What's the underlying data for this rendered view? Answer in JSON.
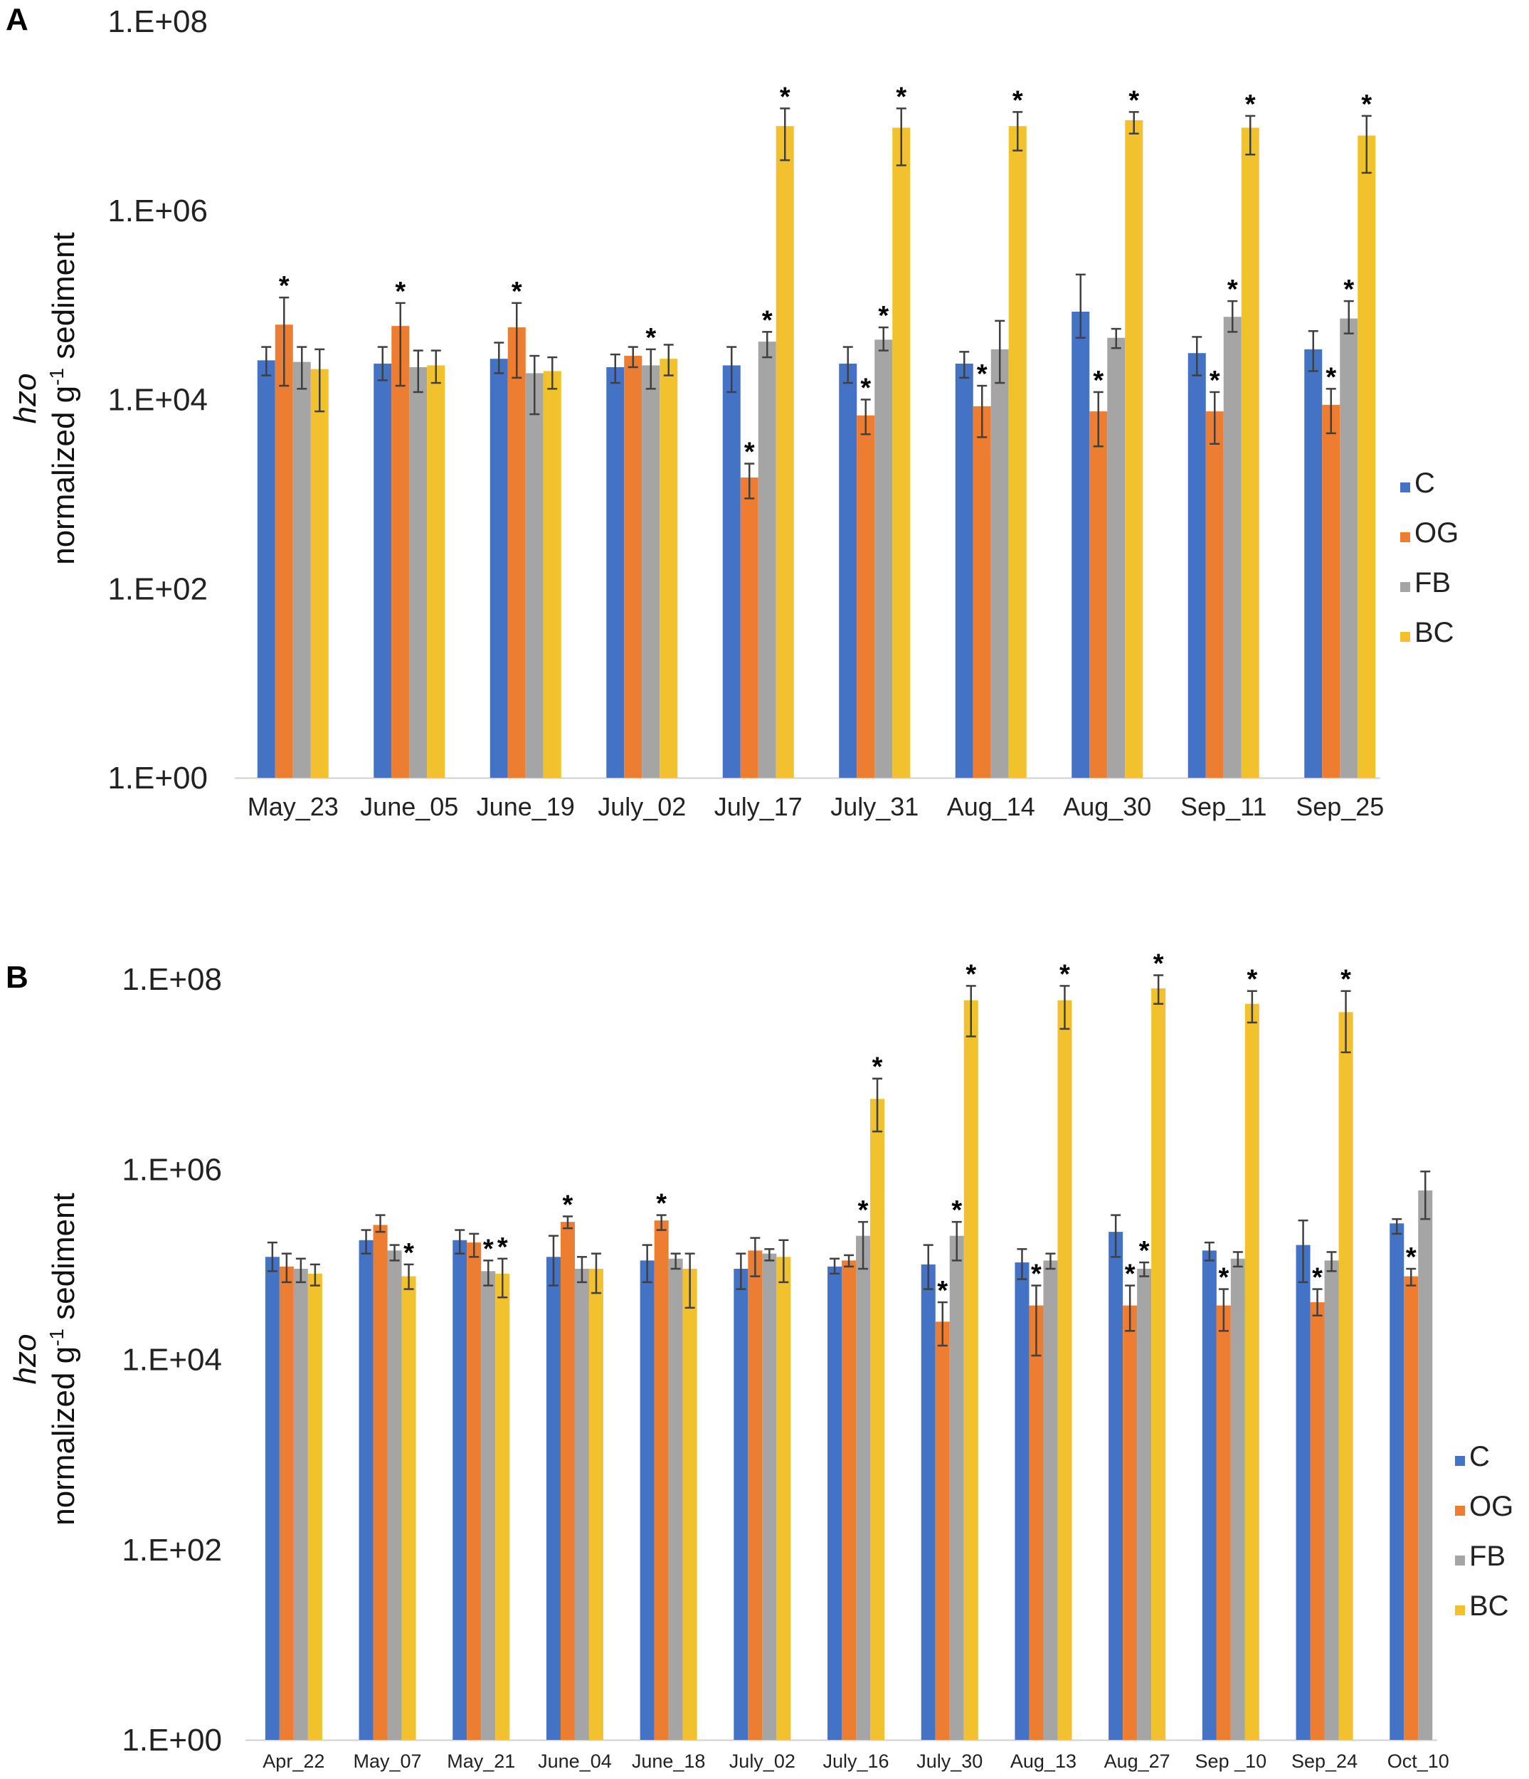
{
  "chart_data": [
    {
      "panel": "A",
      "type": "bar",
      "scale": "log",
      "ylim": [
        1,
        100000000
      ],
      "y_ticks": [
        "1.E+00",
        "1.E+02",
        "1.E+04",
        "1.E+06",
        "1.E+08"
      ],
      "ylabel_italic": "hzo",
      "ylabel": "normalized g",
      "ylabel_sup": "-1",
      "ylabel_suffix": " sediment",
      "categories": [
        "May_23",
        "June_05",
        "June_19",
        "July_02",
        "July_17",
        "July_31",
        "Aug_14",
        "Aug_30",
        "Sep_11",
        "Sep_25"
      ],
      "series": [
        {
          "name": "C",
          "color": "#4472C4",
          "values": [
            26000,
            24000,
            27000,
            22000,
            23000,
            24000,
            24000,
            85000,
            31000,
            34000
          ],
          "err_low": [
            18000,
            16000,
            19000,
            15000,
            12000,
            15000,
            17000,
            45000,
            18000,
            20000
          ],
          "err_high": [
            36000,
            36000,
            40000,
            30000,
            36000,
            36000,
            32000,
            210000,
            46000,
            53000
          ],
          "sig": [
            false,
            false,
            false,
            false,
            false,
            false,
            false,
            false,
            false,
            false
          ]
        },
        {
          "name": "OG",
          "color": "#ED7D31",
          "values": [
            62000,
            60000,
            58000,
            29000,
            1500,
            6800,
            8500,
            7500,
            7500,
            8800
          ],
          "err_low": [
            14000,
            14000,
            17000,
            22000,
            900,
            4300,
            4000,
            3200,
            3400,
            4400
          ],
          "err_high": [
            120000,
            105000,
            105000,
            36000,
            2100,
            10000,
            14000,
            12000,
            12000,
            13000
          ],
          "sig": [
            true,
            true,
            true,
            false,
            true,
            true,
            true,
            true,
            true,
            true
          ]
        },
        {
          "name": "FB",
          "color": "#A5A5A5",
          "values": [
            25000,
            22000,
            19000,
            23000,
            41000,
            43000,
            34000,
            45000,
            75000,
            72000
          ],
          "err_low": [
            13000,
            12000,
            7000,
            13000,
            28000,
            33000,
            15000,
            35000,
            52000,
            50000
          ],
          "err_high": [
            36000,
            33000,
            29000,
            34000,
            52000,
            58000,
            68000,
            56000,
            110000,
            110000
          ],
          "sig": [
            false,
            false,
            false,
            true,
            true,
            true,
            false,
            false,
            true,
            true
          ]
        },
        {
          "name": "BC",
          "color": "#F2C12E",
          "values": [
            21000,
            23000,
            20000,
            27000,
            7800000,
            7500000,
            7800000,
            9000000,
            7500000,
            6200000
          ],
          "err_low": [
            7500,
            15000,
            13000,
            18000,
            3400000,
            3000000,
            4300000,
            6500000,
            3900000,
            2500000
          ],
          "err_high": [
            34000,
            33000,
            28000,
            38000,
            12000000,
            12000000,
            11000000,
            11000000,
            10000000,
            10000000
          ],
          "sig": [
            false,
            false,
            false,
            false,
            true,
            true,
            true,
            true,
            true,
            true
          ]
        }
      ],
      "legend": [
        "C",
        "OG",
        "FB",
        "BC"
      ],
      "legend_position": "right"
    },
    {
      "panel": "B",
      "type": "bar",
      "scale": "log",
      "ylim": [
        1,
        100000000
      ],
      "y_ticks": [
        "1.E+00",
        "1.E+02",
        "1.E+04",
        "1.E+06",
        "1.E+08"
      ],
      "ylabel_italic": "hzo",
      "ylabel": "normalized g",
      "ylabel_sup": "-1",
      "ylabel_suffix": " sediment",
      "categories": [
        "Apr_22",
        "May_07",
        "May_21",
        "June_04",
        "June_18",
        "July_02",
        "July_16",
        "July_30",
        "Aug_13",
        "Aug_27",
        "Sep _10",
        "Sep_24",
        "Oct_10"
      ],
      "series": [
        {
          "name": "C",
          "color": "#4472C4",
          "values": [
            120000,
            180000,
            180000,
            120000,
            110000,
            90000,
            95000,
            100000,
            105000,
            220000,
            140000,
            160000,
            270000
          ],
          "err_low": [
            85000,
            130000,
            130000,
            60000,
            65000,
            55000,
            80000,
            55000,
            70000,
            120000,
            110000,
            65000,
            210000
          ],
          "err_high": [
            170000,
            230000,
            230000,
            200000,
            160000,
            130000,
            115000,
            160000,
            145000,
            330000,
            170000,
            290000,
            300000
          ],
          "sig": [
            false,
            false,
            false,
            false,
            false,
            false,
            false,
            false,
            false,
            false,
            false,
            false,
            false
          ]
        },
        {
          "name": "OG",
          "color": "#ED7D31",
          "values": [
            95000,
            260000,
            170000,
            280000,
            290000,
            140000,
            110000,
            25000,
            37000,
            37000,
            37000,
            40000,
            75000
          ],
          "err_low": [
            65000,
            220000,
            120000,
            240000,
            230000,
            75000,
            95000,
            14000,
            11000,
            20000,
            20000,
            29000,
            60000
          ],
          "err_high": [
            130000,
            330000,
            210000,
            320000,
            330000,
            190000,
            125000,
            40000,
            60000,
            60000,
            55000,
            55000,
            90000
          ],
          "sig": [
            false,
            false,
            false,
            true,
            true,
            false,
            false,
            true,
            true,
            true,
            true,
            true,
            true
          ]
        },
        {
          "name": "FB",
          "color": "#A5A5A5",
          "values": [
            90000,
            140000,
            85000,
            90000,
            115000,
            130000,
            200000,
            200000,
            110000,
            90000,
            115000,
            110000,
            600000
          ],
          "err_low": [
            65000,
            110000,
            60000,
            65000,
            90000,
            110000,
            90000,
            110000,
            90000,
            75000,
            95000,
            85000,
            300000
          ],
          "err_high": [
            115000,
            160000,
            110000,
            120000,
            130000,
            145000,
            280000,
            280000,
            130000,
            105000,
            135000,
            135000,
            950000
          ],
          "sig": [
            false,
            false,
            true,
            false,
            false,
            false,
            true,
            true,
            false,
            true,
            false,
            false,
            false
          ]
        },
        {
          "name": "BC",
          "color": "#F2C12E",
          "values": [
            80000,
            75000,
            80000,
            90000,
            90000,
            120000,
            5500000,
            60000000,
            60000000,
            80000000,
            55000000,
            45000000,
            null
          ],
          "err_low": [
            60000,
            55000,
            45000,
            50000,
            35000,
            65000,
            2500000,
            25000000,
            30000000,
            55000000,
            35000000,
            17000000,
            null
          ],
          "err_high": [
            100000,
            100000,
            115000,
            130000,
            130000,
            180000,
            9000000,
            85000000,
            85000000,
            110000000,
            75000000,
            75000000,
            null
          ],
          "sig": [
            false,
            true,
            true,
            false,
            false,
            false,
            true,
            true,
            true,
            true,
            true,
            true,
            false
          ]
        }
      ],
      "legend": [
        "C",
        "OG",
        "FB",
        "BC"
      ],
      "legend_position": "right"
    }
  ]
}
